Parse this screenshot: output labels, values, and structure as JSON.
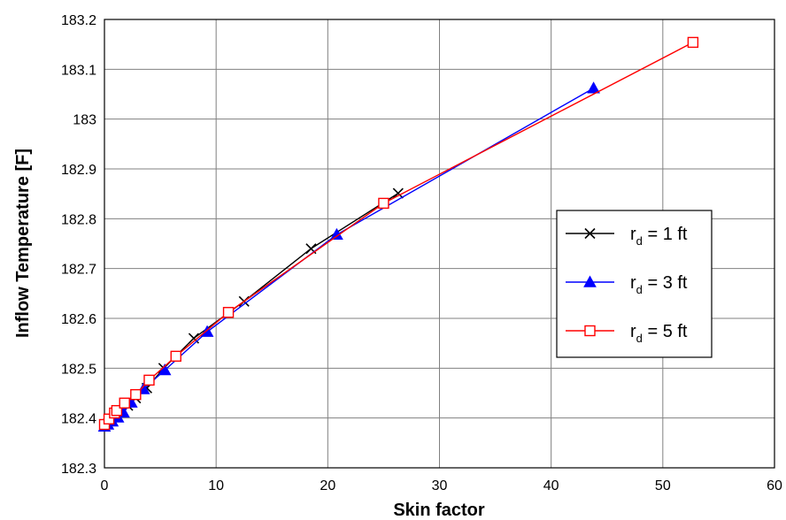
{
  "chart_data": {
    "type": "line",
    "title": "",
    "xlabel": "Skin factor",
    "ylabel": "Inflow Temperature [F]",
    "xlim": [
      0,
      60
    ],
    "ylim": [
      182.3,
      183.2
    ],
    "x_ticks": [
      "0",
      "10",
      "20",
      "30",
      "40",
      "50",
      "60"
    ],
    "y_ticks": [
      "182.3",
      "182.4",
      "182.5",
      "182.6",
      "182.7",
      "182.8",
      "182.9",
      "183",
      "183.1",
      "183.2"
    ],
    "grid": true,
    "legend_position": "right",
    "series": [
      {
        "name_main": "r",
        "name_sub": "d",
        "name_rest": " = 1 ft",
        "color": "#000000",
        "marker": "x",
        "x": [
          0,
          0.3,
          0.6,
          1.0,
          1.5,
          2.1,
          2.8,
          3.8,
          5.3,
          8.0,
          12.5,
          18.5,
          26.3
        ],
        "y": [
          182.383,
          182.388,
          182.395,
          182.402,
          182.412,
          182.425,
          182.44,
          182.46,
          182.5,
          182.56,
          182.634,
          182.74,
          182.851
        ]
      },
      {
        "name_main": "r",
        "name_sub": "d",
        "name_rest": " = 3 ft",
        "color": "#0000ff",
        "marker": "triangle",
        "x": [
          0,
          0.3,
          0.7,
          1.2,
          1.7,
          2.4,
          3.5,
          5.4,
          9.2,
          20.8,
          43.8
        ],
        "y": [
          182.383,
          182.387,
          182.393,
          182.401,
          182.411,
          182.431,
          182.458,
          182.496,
          182.573,
          182.768,
          183.062
        ]
      },
      {
        "name_main": "r",
        "name_sub": "d",
        "name_rest": " = 5 ft",
        "color": "#ff0000",
        "marker": "square",
        "x": [
          0,
          0.4,
          0.9,
          1.1,
          1.8,
          2.8,
          4.0,
          6.4,
          11.1,
          25.0,
          52.7
        ],
        "y": [
          182.387,
          182.398,
          182.41,
          182.415,
          182.43,
          182.447,
          182.476,
          182.524,
          182.612,
          182.831,
          183.154
        ]
      }
    ]
  }
}
